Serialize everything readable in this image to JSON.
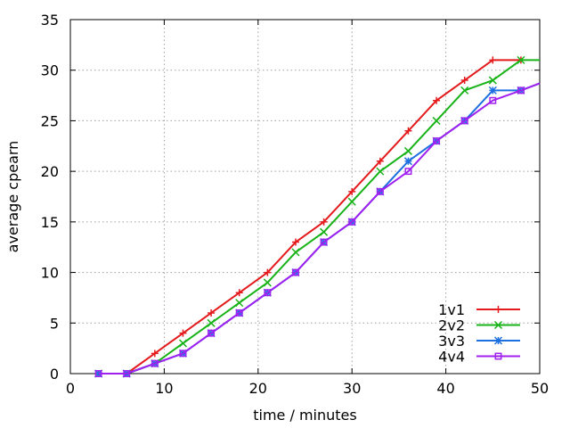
{
  "chart_data": {
    "type": "line",
    "title": "",
    "xlabel": "time / minutes",
    "ylabel": "average cpearn",
    "xlim": [
      0,
      50
    ],
    "ylim": [
      0,
      35
    ],
    "xticks": [
      0,
      10,
      20,
      30,
      40,
      50
    ],
    "yticks": [
      0,
      5,
      10,
      15,
      20,
      25,
      30,
      35
    ],
    "grid": true,
    "legend_position": "bottom-right",
    "series": [
      {
        "name": "1v1",
        "color": "#e41a1c",
        "marker": "plus",
        "x": [
          3,
          6,
          9,
          12,
          15,
          18,
          21,
          24,
          27,
          30,
          33,
          36,
          39,
          42,
          45,
          48
        ],
        "y": [
          0,
          0,
          2,
          4,
          6,
          8,
          10,
          13,
          15,
          18,
          21,
          24,
          27,
          29,
          31,
          31
        ]
      },
      {
        "name": "2v2",
        "color": "#17b317",
        "marker": "cross",
        "x": [
          3,
          6,
          9,
          12,
          15,
          18,
          21,
          24,
          27,
          30,
          33,
          36,
          39,
          42,
          45,
          48,
          50
        ],
        "y": [
          0,
          0,
          1,
          3,
          5,
          7,
          9,
          12,
          14,
          17,
          20,
          22,
          25,
          28,
          29,
          31,
          31
        ]
      },
      {
        "name": "3v3",
        "color": "#1e6fe0",
        "marker": "star",
        "x": [
          3,
          6,
          9,
          12,
          15,
          18,
          21,
          24,
          27,
          30,
          33,
          36,
          39,
          42,
          45,
          48,
          50
        ],
        "y": [
          0,
          0,
          1,
          2,
          4,
          6,
          8,
          10,
          13,
          15,
          18,
          21,
          23,
          25,
          28,
          28,
          28.7
        ]
      },
      {
        "name": "4v4",
        "color": "#a020f0",
        "marker": "square",
        "x": [
          3,
          6,
          9,
          12,
          15,
          18,
          21,
          24,
          27,
          30,
          33,
          36,
          39,
          42,
          45,
          48,
          50
        ],
        "y": [
          0,
          0,
          1,
          2,
          4,
          6,
          8,
          10,
          13,
          15,
          18,
          20,
          23,
          25,
          27,
          28,
          28.7
        ]
      }
    ]
  }
}
